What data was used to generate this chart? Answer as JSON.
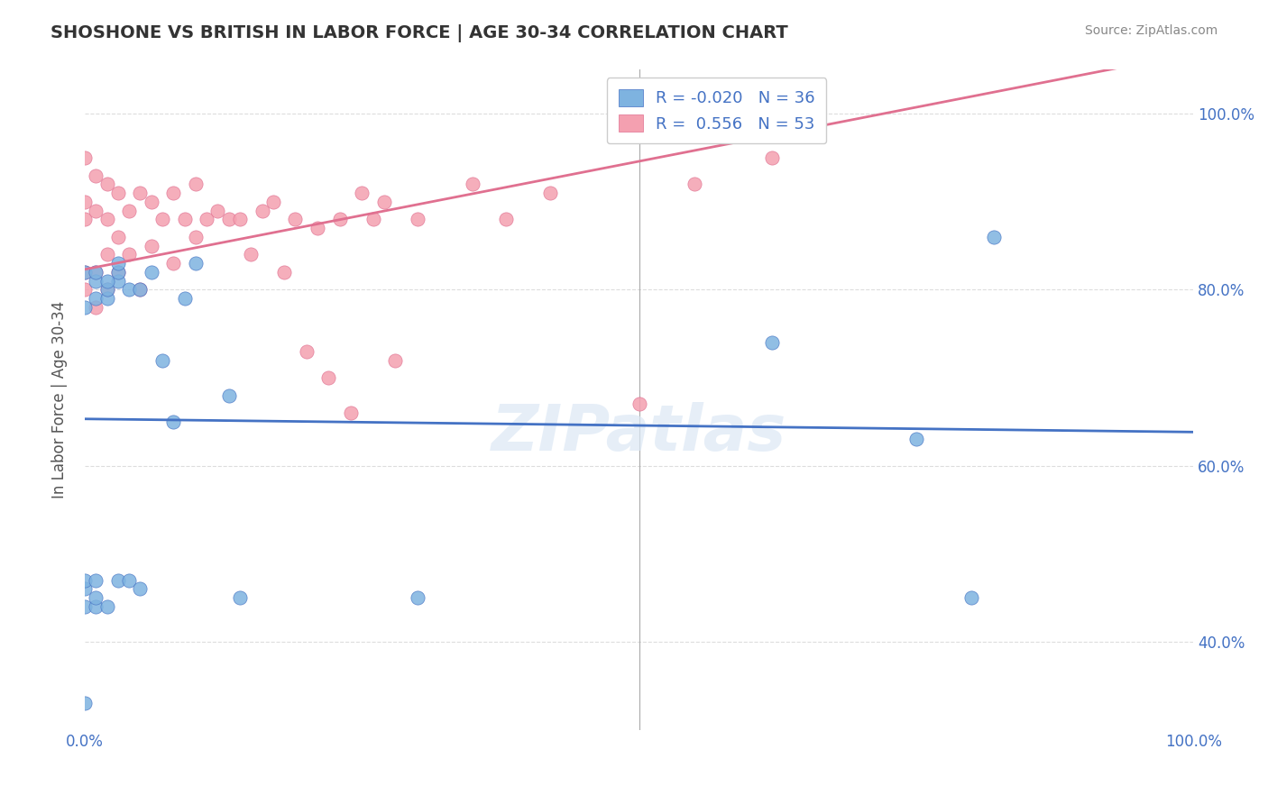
{
  "title": "SHOSHONE VS BRITISH IN LABOR FORCE | AGE 30-34 CORRELATION CHART",
  "source": "Source: ZipAtlas.com",
  "ylabel": "In Labor Force | Age 30-34",
  "xlabel": "",
  "xlim": [
    0.0,
    1.0
  ],
  "ylim": [
    0.3,
    1.05
  ],
  "yticks": [
    0.4,
    0.6,
    0.8,
    1.0
  ],
  "yticklabels": [
    "40.0%",
    "60.0%",
    "80.0%",
    "100.0%"
  ],
  "xticks": [
    0.0,
    0.2,
    0.4,
    0.6,
    0.8,
    1.0
  ],
  "xticklabels": [
    "0.0%",
    "",
    "",
    "",
    "",
    "100.0%"
  ],
  "shoshone_color": "#7eb3e0",
  "british_color": "#f4a0b0",
  "shoshone_line_color": "#4472c4",
  "british_line_color": "#e07090",
  "shoshone_R": -0.02,
  "shoshone_N": 36,
  "british_R": 0.556,
  "british_N": 53,
  "background_color": "#ffffff",
  "grid_color": "#dddddd",
  "watermark": "ZIPatlas",
  "shoshone_x": [
    0.0,
    0.0,
    0.0,
    0.0,
    0.0,
    0.0,
    0.01,
    0.01,
    0.01,
    0.01,
    0.01,
    0.01,
    0.02,
    0.02,
    0.02,
    0.03,
    0.03,
    0.03,
    0.04,
    0.04,
    0.05,
    0.05,
    0.06,
    0.07,
    0.08,
    0.09,
    0.1,
    0.13,
    0.14,
    0.3,
    0.62,
    0.75,
    0.8,
    0.82,
    0.02,
    0.03
  ],
  "shoshone_y": [
    0.33,
    0.44,
    0.46,
    0.47,
    0.78,
    0.82,
    0.44,
    0.45,
    0.47,
    0.79,
    0.81,
    0.82,
    0.44,
    0.79,
    0.8,
    0.47,
    0.81,
    0.82,
    0.47,
    0.8,
    0.46,
    0.8,
    0.82,
    0.72,
    0.65,
    0.79,
    0.83,
    0.68,
    0.45,
    0.45,
    0.74,
    0.63,
    0.45,
    0.86,
    0.81,
    0.83
  ],
  "british_x": [
    0.0,
    0.0,
    0.0,
    0.0,
    0.0,
    0.01,
    0.01,
    0.01,
    0.01,
    0.02,
    0.02,
    0.02,
    0.02,
    0.03,
    0.03,
    0.03,
    0.04,
    0.04,
    0.05,
    0.05,
    0.06,
    0.06,
    0.07,
    0.08,
    0.08,
    0.09,
    0.1,
    0.1,
    0.11,
    0.12,
    0.13,
    0.14,
    0.15,
    0.16,
    0.17,
    0.18,
    0.19,
    0.2,
    0.21,
    0.22,
    0.23,
    0.24,
    0.25,
    0.26,
    0.27,
    0.28,
    0.3,
    0.35,
    0.38,
    0.42,
    0.5,
    0.55,
    0.62
  ],
  "british_y": [
    0.8,
    0.82,
    0.88,
    0.9,
    0.95,
    0.78,
    0.82,
    0.89,
    0.93,
    0.8,
    0.84,
    0.88,
    0.92,
    0.82,
    0.86,
    0.91,
    0.84,
    0.89,
    0.8,
    0.91,
    0.85,
    0.9,
    0.88,
    0.83,
    0.91,
    0.88,
    0.86,
    0.92,
    0.88,
    0.89,
    0.88,
    0.88,
    0.84,
    0.89,
    0.9,
    0.82,
    0.88,
    0.73,
    0.87,
    0.7,
    0.88,
    0.66,
    0.91,
    0.88,
    0.9,
    0.72,
    0.88,
    0.92,
    0.88,
    0.91,
    0.67,
    0.92,
    0.95
  ]
}
